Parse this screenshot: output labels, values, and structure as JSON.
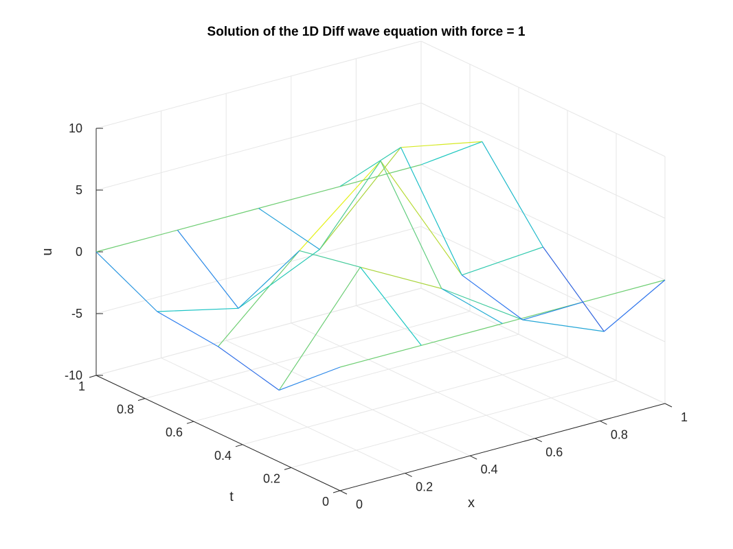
{
  "chart_data": {
    "type": "surface-mesh-3d",
    "title": "Solution of the 1D Diff wave equation with force = 1",
    "xlabel": "x",
    "ylabel": "t",
    "zlabel": "u",
    "xlim": [
      0,
      1
    ],
    "ylim": [
      0,
      1
    ],
    "zlim": [
      -10,
      10
    ],
    "xticks": [
      "0",
      "0.2",
      "0.4",
      "0.6",
      "0.8",
      "1"
    ],
    "yticks": [
      "0",
      "0.2",
      "0.4",
      "0.6",
      "0.8",
      "1"
    ],
    "zticks": [
      "-10",
      "-5",
      "0",
      "5",
      "10"
    ],
    "grid": true,
    "colormap": "parula",
    "colors": {
      "low": "#3e26a8",
      "mid": "#1ac7c2",
      "high": "#f9fb0e"
    },
    "x": [
      0,
      0.25,
      0.5,
      0.75,
      1
    ],
    "t": [
      0,
      0.25,
      0.5,
      0.75,
      1
    ],
    "u": [
      [
        0,
        0,
        0,
        0,
        0
      ],
      [
        -4.2,
        4.0,
        0.5,
        -3.8,
        -6.5
      ],
      [
        -3.0,
        3.0,
        8.5,
        -2.5,
        -2.0
      ],
      [
        -2.5,
        -4.0,
        -1.0,
        5.5,
        4.2
      ],
      [
        0,
        0,
        0,
        0,
        0
      ]
    ]
  }
}
